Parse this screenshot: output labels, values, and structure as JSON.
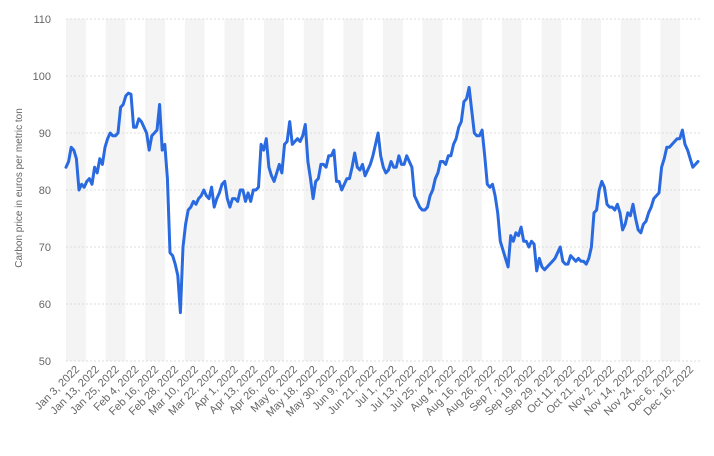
{
  "chart_data": {
    "type": "line",
    "title": "",
    "xlabel": "",
    "ylabel": "Carbon price in euros per metric ton",
    "ylim": [
      50,
      110
    ],
    "yticks": [
      50,
      60,
      70,
      80,
      90,
      100,
      110
    ],
    "grid": true,
    "legend": "none",
    "x_tick_labels": [
      "Jan 3, 2022",
      "Jan 13, 2022",
      "Jan 25, 2022",
      "Feb 4, 2022",
      "Feb 16, 2022",
      "Feb 28, 2022",
      "Mar 10, 2022",
      "Mar 22, 2022",
      "Apr 1, 2022",
      "Apr 13, 2022",
      "Apr 26, 2022",
      "May 6, 2022",
      "May 18, 2022",
      "May 30, 2022",
      "Jun 9, 2022",
      "Jun 21, 2022",
      "Jul 1, 2022",
      "Jul 13, 2022",
      "Jul 25, 2022",
      "Aug 4, 2022",
      "Aug 16, 2022",
      "Aug 26, 2022",
      "Sep 7, 2022",
      "Sep 19, 2022",
      "Sep 29, 2022",
      "Oct 11, 2022",
      "Oct 21, 2022",
      "Nov 2, 2022",
      "Nov 14, 2022",
      "Nov 24, 2022",
      "Dec 6, 2022",
      "Dec 16, 2022"
    ],
    "series": [
      {
        "color": "#2a6ae0",
        "values": [
          84,
          85,
          87.5,
          87,
          85.5,
          80,
          81,
          80.5,
          81.5,
          82,
          81,
          84,
          83,
          85.5,
          84.5,
          87.5,
          89,
          90,
          89.5,
          89.5,
          90,
          94.5,
          95,
          96.5,
          97,
          96.8,
          91,
          91,
          92.5,
          92,
          91,
          90,
          87,
          89.5,
          90,
          90.5,
          95,
          87,
          88,
          82,
          69,
          68.5,
          67,
          65,
          58.5,
          70,
          74,
          76.5,
          77,
          78,
          77.5,
          78.5,
          79,
          80,
          79,
          78.5,
          80.5,
          77,
          78.5,
          79.5,
          81,
          81.5,
          78.5,
          77,
          78.5,
          78.5,
          78,
          80,
          80,
          78,
          79.5,
          78,
          80,
          80,
          80.5,
          88,
          87,
          89,
          84,
          82.5,
          81.5,
          83,
          84.5,
          83,
          88,
          88.5,
          92,
          88,
          88.5,
          89,
          88.5,
          89.5,
          91.5,
          85,
          82,
          78.5,
          81.5,
          82,
          84.5,
          84.5,
          84,
          86,
          86,
          87,
          81.5,
          81.5,
          80,
          81,
          82,
          82,
          84,
          86.5,
          84,
          83.5,
          84.5,
          82.5,
          83.5,
          84.5,
          86,
          88,
          90,
          86,
          84,
          83,
          83.5,
          85,
          84,
          84,
          86,
          84.5,
          84.5,
          86,
          85,
          84,
          79,
          78,
          77,
          76.5,
          76.5,
          77,
          79,
          80,
          82,
          83,
          85,
          85,
          84.5,
          86,
          86,
          88,
          89,
          91,
          92,
          95.5,
          96,
          98,
          94,
          90,
          89.5,
          89.5,
          90.5,
          86,
          81,
          80.5,
          81,
          79,
          76,
          71,
          69.5,
          68,
          66.5,
          72,
          71,
          72.5,
          72,
          73.5,
          71,
          71,
          70,
          71,
          70.5,
          65.8,
          68,
          66.5,
          66,
          66.5,
          67,
          67.5,
          68,
          69,
          70,
          67.5,
          67,
          67,
          68.5,
          68,
          67.5,
          68,
          67.5,
          67.5,
          67,
          68,
          70,
          76,
          76.5,
          80,
          81.5,
          80.5,
          77.5,
          77,
          77,
          76.5,
          77.5,
          76,
          73,
          74,
          76,
          75.5,
          77.5,
          75,
          73,
          72.5,
          74,
          74.5,
          76,
          77,
          78.5,
          79,
          79.5,
          84,
          85.5,
          87.5,
          87.5,
          88,
          88.5,
          89,
          89,
          90.5,
          88,
          87,
          85.5,
          84,
          84.5,
          85
        ]
      }
    ]
  }
}
